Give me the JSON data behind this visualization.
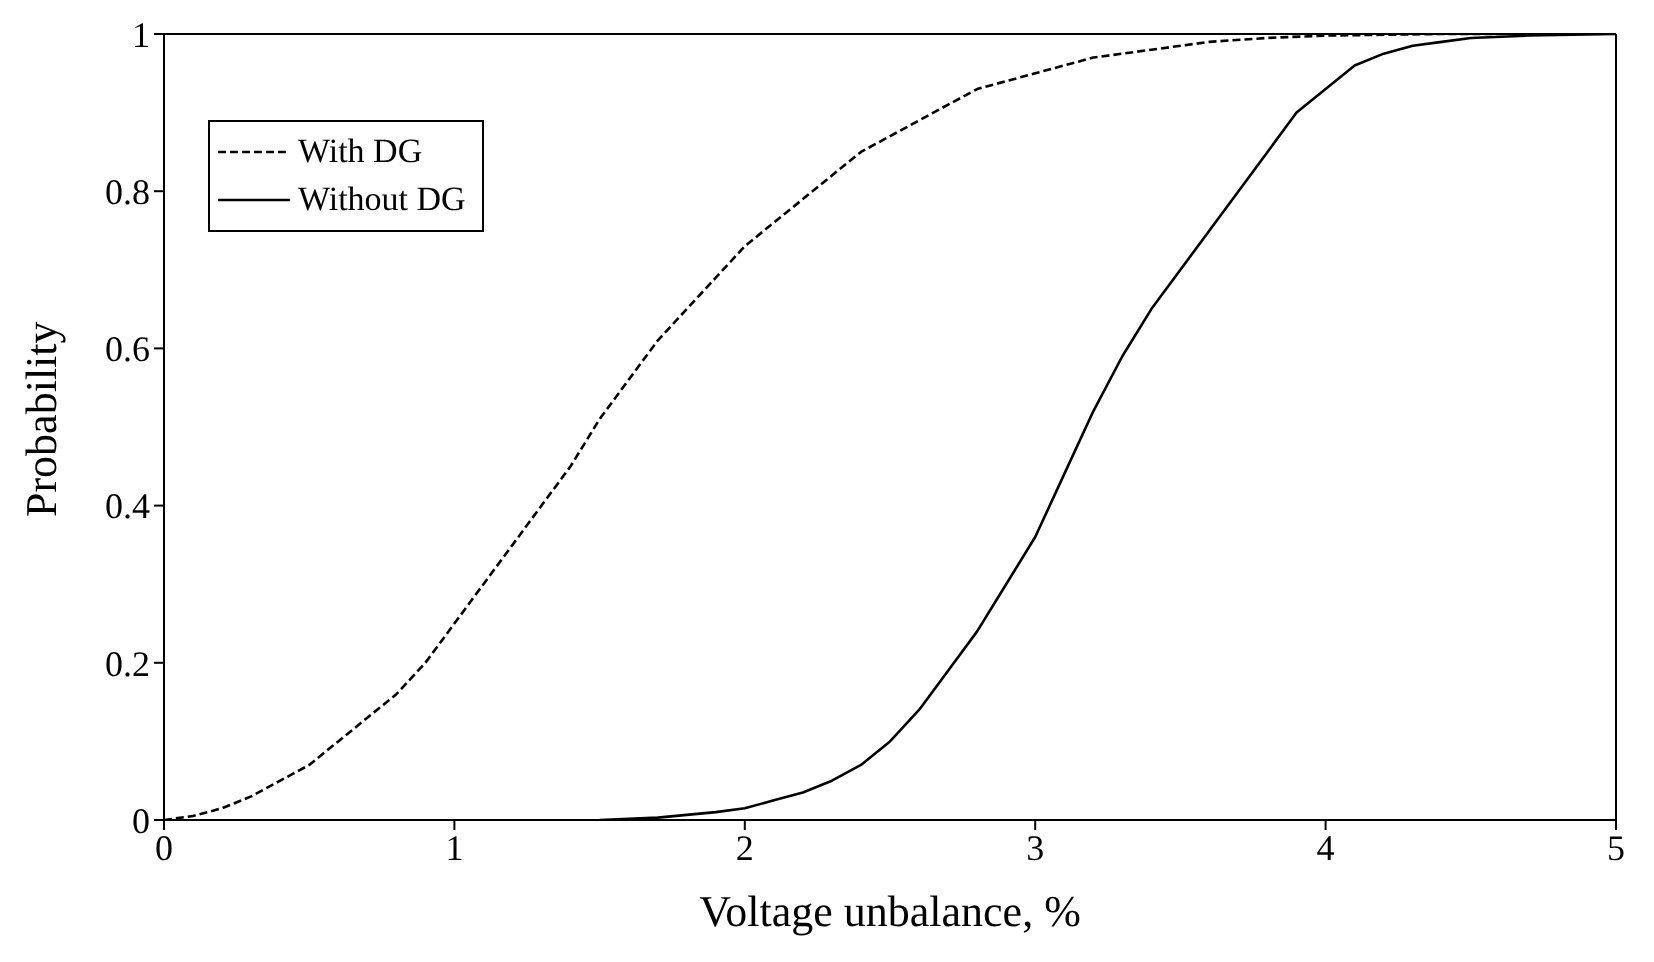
{
  "chart_data": {
    "type": "line",
    "xlabel": "Voltage unbalance, %",
    "ylabel": "Probability",
    "xlim": [
      0,
      5
    ],
    "xticks": [
      0,
      1,
      2,
      3,
      4,
      5
    ],
    "ylim": [
      0,
      1
    ],
    "yticks": [
      0,
      0.2,
      0.4,
      0.6,
      0.8,
      1
    ],
    "grid": false,
    "legend": "top left",
    "marker": "none",
    "series": [
      {
        "name": "With DG",
        "color": "#000000",
        "line_style": "dashed",
        "x": [
          0,
          0.1,
          0.2,
          0.3,
          0.4,
          0.5,
          0.6,
          0.7,
          0.8,
          0.9,
          1,
          1.1,
          1.2,
          1.3,
          1.4,
          1.5,
          1.6,
          1.7,
          1.8,
          1.9,
          2,
          2.2,
          2.4,
          2.6,
          2.8,
          3,
          3.2,
          3.4,
          3.6,
          3.8,
          4,
          4.2,
          4.4,
          4.7
        ],
        "values": [
          0,
          0.005,
          0.015,
          0.03,
          0.05,
          0.07,
          0.1,
          0.13,
          0.16,
          0.2,
          0.25,
          0.3,
          0.35,
          0.4,
          0.45,
          0.51,
          0.56,
          0.61,
          0.65,
          0.69,
          0.73,
          0.79,
          0.85,
          0.89,
          0.93,
          0.95,
          0.97,
          0.98,
          0.99,
          0.995,
          0.998,
          0.999,
          1,
          1
        ]
      },
      {
        "name": "Without DG",
        "color": "#000000",
        "line_style": "solid",
        "x": [
          1.5,
          1.7,
          1.9,
          2,
          2.1,
          2.2,
          2.3,
          2.4,
          2.5,
          2.6,
          2.7,
          2.8,
          2.9,
          3,
          3.1,
          3.2,
          3.3,
          3.4,
          3.5,
          3.6,
          3.7,
          3.8,
          3.9,
          4,
          4.1,
          4.2,
          4.3,
          4.4,
          4.5,
          4.7,
          5
        ],
        "values": [
          0,
          0.003,
          0.01,
          0.015,
          0.025,
          0.035,
          0.05,
          0.07,
          0.1,
          0.14,
          0.19,
          0.24,
          0.3,
          0.36,
          0.44,
          0.52,
          0.59,
          0.65,
          0.7,
          0.75,
          0.8,
          0.85,
          0.9,
          0.93,
          0.96,
          0.975,
          0.985,
          0.99,
          0.995,
          0.998,
          1
        ]
      }
    ]
  }
}
